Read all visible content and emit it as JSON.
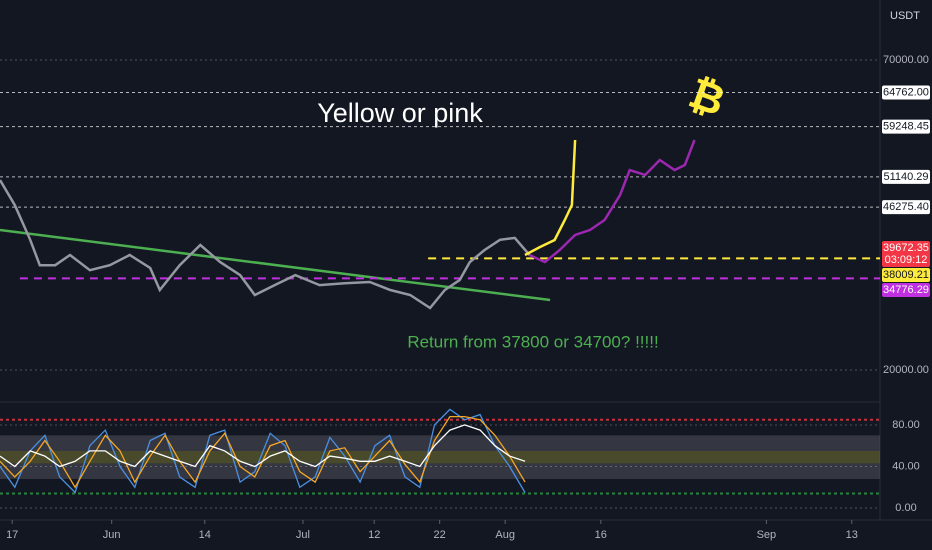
{
  "chart_data": [
    {
      "type": "line",
      "axis_label": "USDT",
      "title": "Yellow or pink",
      "annotation": "Return from 37800 or 34700? !!!!!",
      "symbol": "₿",
      "xlim": [
        -1.9,
        135.2
      ],
      "ylim": [
        15160,
        79680
      ],
      "yticks": [
        {
          "value": 70000,
          "label": "70000.00"
        },
        {
          "value": 20000,
          "label": "20000.00"
        }
      ],
      "xticks": [
        {
          "value": 0,
          "label": "17"
        },
        {
          "value": 15.5,
          "label": "Jun"
        },
        {
          "value": 30,
          "label": "14"
        },
        {
          "value": 45.3,
          "label": "Jul"
        },
        {
          "value": 56.4,
          "label": "12"
        },
        {
          "value": 66.6,
          "label": "22"
        },
        {
          "value": 76.8,
          "label": "Aug"
        },
        {
          "value": 91.7,
          "label": "16"
        },
        {
          "value": 117.5,
          "label": "Sep"
        },
        {
          "value": 130.8,
          "label": "13"
        }
      ],
      "series": [
        {
          "color": "#9598a1",
          "x": [
            -1.9,
            0.4,
            2.8,
            4.3,
            6.7,
            9.0,
            12.1,
            15.2,
            18.3,
            21.5,
            23.0,
            26.1,
            29.3,
            32.4,
            35.5,
            37.8,
            40.9,
            44.1,
            47.9,
            51.8,
            55.7,
            58.9,
            62.0,
            65.1,
            67.4,
            69.7,
            71.3,
            73.6,
            76.0,
            78.3,
            80.6
          ],
          "values": [
            50650,
            46600,
            41000,
            36900,
            36900,
            38550,
            36100,
            36900,
            38550,
            36450,
            32900,
            36900,
            40160,
            37400,
            35300,
            32100,
            33700,
            35300,
            33700,
            34000,
            34200,
            32900,
            32100,
            30000,
            32900,
            34500,
            37400,
            39350,
            41000,
            41300,
            38550
          ]
        },
        {
          "color": "#9c27b0",
          "x": [
            80.6,
            83.0,
            85.3,
            87.7,
            90.0,
            92.3,
            94.7,
            96.2,
            98.6,
            100.9,
            103.2,
            104.8,
            106.3
          ],
          "values": [
            38550,
            37400,
            39350,
            41770,
            42580,
            44190,
            48200,
            52260,
            51450,
            53870,
            52260,
            53060,
            57100
          ]
        },
        {
          "color": "#ffeb3b",
          "x": [
            79.9,
            82.2,
            84.5,
            86.1,
            87.2,
            87.7
          ],
          "values": [
            38550,
            39830,
            40970,
            44190,
            46610,
            57100
          ]
        }
      ],
      "trendline": {
        "color": "#4caf50",
        "x": [
          -1.9,
          83.8
        ],
        "values": [
          42580,
          31290
        ]
      },
      "price_lines": [
        {
          "value": 64762,
          "label": "64762.00",
          "color": "#ffffff",
          "text_color": "#131722",
          "style": "dotted"
        },
        {
          "value": 59248.45,
          "label": "59248.45",
          "color": "#ffffff",
          "text_color": "#131722",
          "style": "dotted"
        },
        {
          "value": 51140.29,
          "label": "51140.29",
          "color": "#ffffff",
          "text_color": "#131722",
          "style": "dotted"
        },
        {
          "value": 46275.4,
          "label": "46275.40",
          "color": "#ffffff",
          "text_color": "#131722",
          "style": "dotted"
        },
        {
          "value": 39672.35,
          "label": "39672.35",
          "color": "#f23645",
          "text_color": "#ffffff",
          "style": "none",
          "countdown": "03:09:12"
        },
        {
          "value": 38009.21,
          "label": "38009.21",
          "color": "#ffeb3b",
          "text_color": "#131722",
          "style": "dashed",
          "x_from": 64.8
        },
        {
          "value": 34776.29,
          "label": "34776.29",
          "color": "#c030e0",
          "text_color": "#ffffff",
          "style": "dashed",
          "x_from": 1.2
        }
      ]
    },
    {
      "type": "line",
      "xlim": [
        -1.9,
        135.2
      ],
      "ylim": [
        -11.5,
        99.2
      ],
      "yticks": [
        {
          "value": 80,
          "label": "80.00"
        },
        {
          "value": 40,
          "label": "40.00"
        },
        {
          "value": 0,
          "label": "0.00"
        }
      ],
      "levels": [
        {
          "value": 85,
          "color": "#f23645"
        },
        {
          "value": 14,
          "color": "#2ea043"
        }
      ],
      "bands": [
        {
          "from": 70,
          "to": 55,
          "color": "#5d606b"
        },
        {
          "from": 55,
          "to": 43,
          "color": "#8c8a3a"
        },
        {
          "from": 43,
          "to": 28,
          "color": "#5d606b"
        }
      ],
      "x": [
        -1.9,
        0.4,
        2.8,
        5.1,
        7.4,
        9.8,
        12.1,
        14.5,
        16.8,
        19.1,
        21.5,
        23.8,
        26.1,
        28.5,
        30.8,
        33.1,
        35.5,
        37.8,
        40.2,
        42.5,
        44.8,
        47.2,
        49.5,
        51.8,
        54.2,
        56.5,
        58.8,
        61.2,
        63.5,
        65.8,
        68.2,
        70.5,
        72.9,
        75.2,
        77.5,
        79.9
      ],
      "series": [
        {
          "color": "#4a90e2",
          "values": [
            40,
            20,
            55,
            70,
            30,
            15,
            60,
            75,
            40,
            20,
            65,
            72,
            30,
            20,
            70,
            75,
            25,
            35,
            72,
            60,
            20,
            30,
            68,
            50,
            25,
            60,
            70,
            30,
            20,
            80,
            95,
            85,
            90,
            60,
            40,
            15
          ]
        },
        {
          "color": "#f5a623",
          "values": [
            45,
            30,
            45,
            65,
            45,
            20,
            45,
            70,
            55,
            25,
            50,
            70,
            45,
            25,
            55,
            72,
            40,
            30,
            60,
            65,
            35,
            25,
            55,
            58,
            35,
            50,
            65,
            42,
            25,
            65,
            88,
            88,
            85,
            70,
            50,
            25
          ]
        },
        {
          "color": "#ffffff",
          "values": [
            50,
            40,
            55,
            50,
            40,
            45,
            55,
            55,
            45,
            40,
            55,
            50,
            45,
            40,
            60,
            55,
            45,
            40,
            50,
            55,
            45,
            40,
            50,
            48,
            45,
            45,
            50,
            45,
            40,
            60,
            75,
            80,
            75,
            60,
            50,
            45
          ]
        }
      ]
    }
  ]
}
